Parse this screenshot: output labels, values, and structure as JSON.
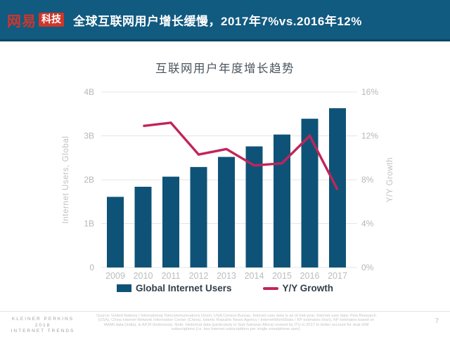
{
  "header": {
    "logo": {
      "brand": "网易",
      "badge": "科技"
    },
    "title": "全球互联网用户增长缓慢，2017年7%vs.2016年12%"
  },
  "chart": {
    "title": "互联网用户年度增长趋势"
  },
  "chart_data": {
    "type": "bar",
    "subtype": "bar+line combo, dual axis",
    "title": "互联网用户年度增长趋势",
    "categories": [
      "2009",
      "2010",
      "2011",
      "2012",
      "2013",
      "2014",
      "2015",
      "2016",
      "2017"
    ],
    "series": [
      {
        "name": "Global Internet Users",
        "type": "bar",
        "axis": "left",
        "unit": "B",
        "values": [
          1.61,
          1.84,
          2.07,
          2.29,
          2.52,
          2.76,
          3.03,
          3.39,
          3.63
        ],
        "color": "#0e5377"
      },
      {
        "name": "Y/Y Growth",
        "type": "line",
        "axis": "right",
        "unit": "%",
        "values": [
          null,
          12.9,
          13.2,
          10.3,
          10.8,
          9.3,
          9.5,
          12.0,
          7.1
        ],
        "color": "#c2245a"
      }
    ],
    "left_axis": {
      "label": "Internet Users, Global",
      "ticks": [
        "0",
        "1B",
        "2B",
        "3B",
        "4B"
      ],
      "range": [
        0,
        4
      ]
    },
    "right_axis": {
      "label": "Y/Y Growth",
      "ticks": [
        "0%",
        "4%",
        "8%",
        "12%",
        "16%"
      ],
      "range": [
        0,
        16
      ]
    },
    "grid": true,
    "legend_position": "bottom"
  },
  "colors": {
    "header_bg": "#115a80",
    "header_border": "#0a4564",
    "logo_red": "#cf362c",
    "bar": "#0e5377",
    "line": "#c2245a",
    "axis_text": "#b4b7b9",
    "gridline": "#e5e5e5"
  },
  "footer": {
    "brand_lines": [
      "KLEINER PERKINS",
      "2018",
      "INTERNET TRENDS"
    ],
    "source": "Source: United Nations / International Telecommunications Union, USA Census Bureau. Internet user data is as of mid-year. Internet user data: Pew Research (USA), China Internet Network Information Center (China), Islamic Republic News Agency / InternetWorldStats / KP estimates (Iran), KP estimates based on IAMAI data (India), & APJII (Indonesia). Note: Historical data (particularly in Sub-Saharan Africa) revised by ITU in 2017 to better account for dual-SIM subscriptions (i.e. two Internet subscriptions per single smartphone user).",
    "page_number": "7"
  }
}
